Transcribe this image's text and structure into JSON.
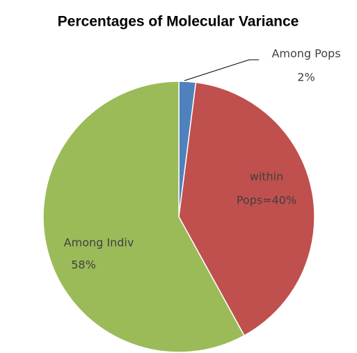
{
  "chart_data": {
    "type": "pie",
    "title": "Percentages of Molecular Variance",
    "values": [
      2,
      40,
      58
    ],
    "value_labels": [
      [
        "Among Pops",
        "2%"
      ],
      [
        "within",
        "Pops=40%"
      ],
      [
        "Among Indiv",
        "58%"
      ]
    ],
    "colors": [
      "#4f81bd",
      "#c0504d",
      "#9bbb59"
    ]
  }
}
